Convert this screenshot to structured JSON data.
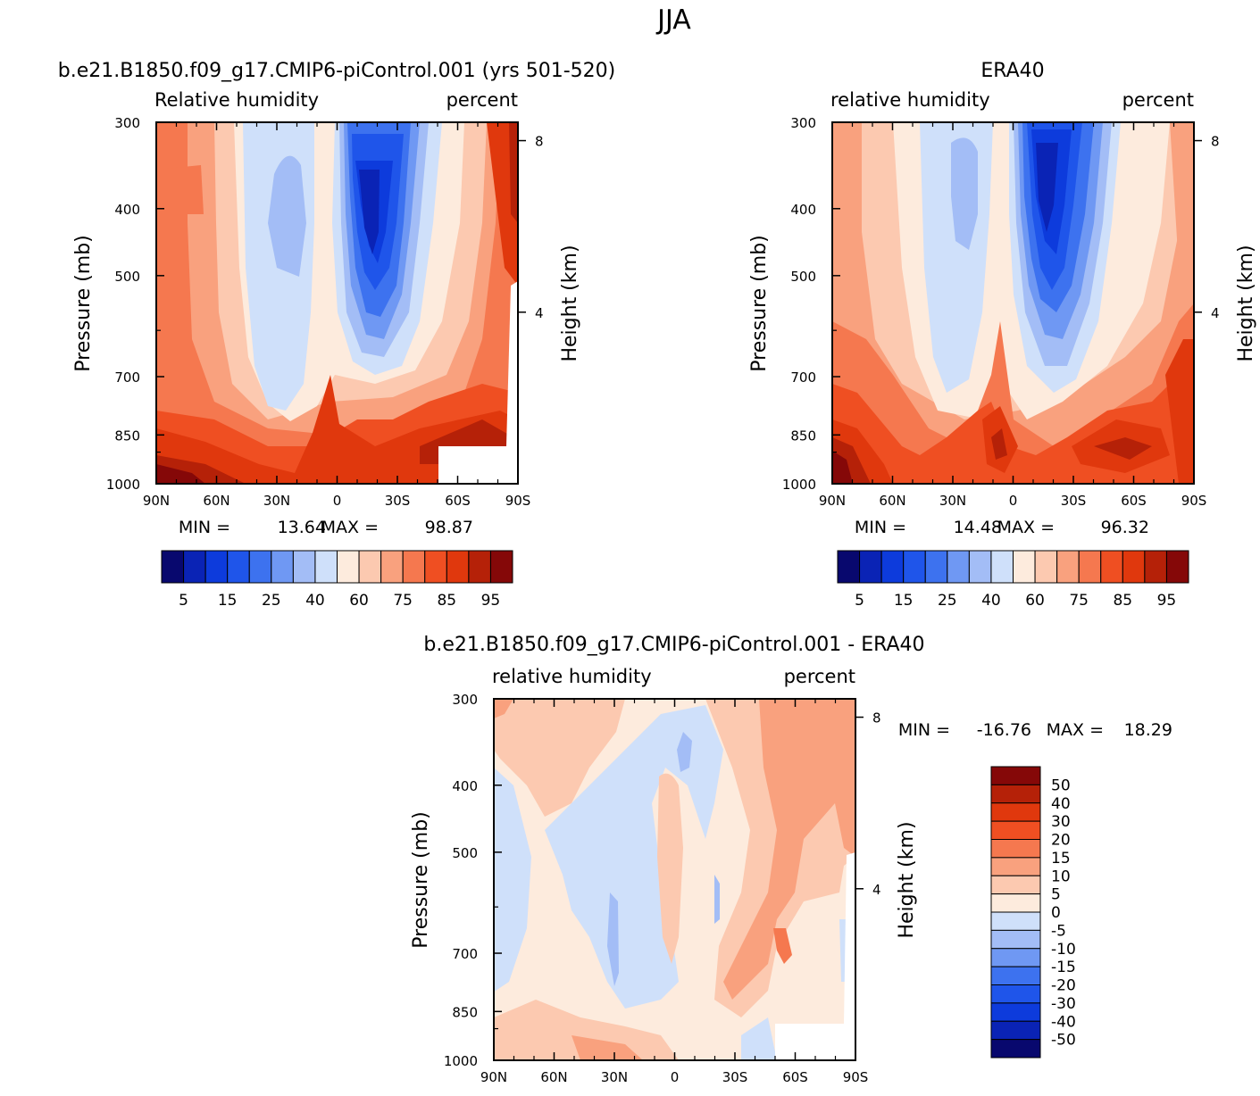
{
  "figure_title": "JJA",
  "colors": {
    "rh_fill": [
      "#08086e",
      "#0a23b5",
      "#0d3bdc",
      "#1f55ea",
      "#3d72ef",
      "#6f98f3",
      "#a3bdf6",
      "#cfe0fa",
      "#fdebdd",
      "#fcc9b0",
      "#f9a17e",
      "#f5784f",
      "#ef4f22",
      "#e0380d",
      "#b52108",
      "#850808"
    ],
    "diff_fill": [
      "#08086e",
      "#0a23b5",
      "#0d3bdc",
      "#1f55ea",
      "#3d72ef",
      "#6f98f3",
      "#a3bdf6",
      "#cfe0fa",
      "#fdebdd",
      "#fcc9b0",
      "#f9a17e",
      "#f5784f",
      "#ef4f22",
      "#e0380d",
      "#b52108",
      "#850808"
    ]
  },
  "chart_data": [
    {
      "type": "heatmap",
      "title": "b.e21.B1850.f09_g17.CMIP6-piControl.001 (yrs 501-520)",
      "left_subtitle": "Relative humidity",
      "right_subtitle": "percent",
      "ylabel": "Pressure (mb)",
      "ylabel_right": "Height (km)",
      "y_ticks": [
        "300",
        "400",
        "500",
        "700",
        "850",
        "1000"
      ],
      "y_tick_values": [
        300,
        400,
        500,
        700,
        850,
        1000
      ],
      "ylim": [
        1000,
        300
      ],
      "right_ticks": [
        "8",
        "4"
      ],
      "right_tick_values_km": [
        8,
        4
      ],
      "x_ticks": [
        "90N",
        "60N",
        "30N",
        "0",
        "30S",
        "60S",
        "90S"
      ],
      "x_tick_values": [
        90,
        60,
        30,
        0,
        -30,
        -60,
        -90
      ],
      "xlim": [
        90,
        -90
      ],
      "min_label": "MIN =",
      "min_value": "13.64",
      "max_label": "MAX =",
      "max_value": "98.87",
      "colorbar_labels": [
        "5",
        "15",
        "25",
        "40",
        "60",
        "75",
        "85",
        "95"
      ],
      "levels": [
        5,
        10,
        15,
        20,
        25,
        30,
        40,
        50,
        60,
        65,
        75,
        80,
        85,
        90,
        95
      ],
      "features": [
        {
          "lat": 28,
          "p": 520,
          "value": 35
        },
        {
          "lat": 10,
          "p": 650,
          "value": 62
        },
        {
          "lat": -13,
          "p": 480,
          "value": 14
        },
        {
          "lat": -55,
          "p": 800,
          "value": 80
        },
        {
          "lat": 84,
          "p": 990,
          "value": 97
        },
        {
          "lat": 85,
          "p": 400,
          "value": 82
        }
      ]
    },
    {
      "type": "heatmap",
      "title": "ERA40",
      "left_subtitle": "relative humidity",
      "right_subtitle": "percent",
      "ylabel": "Pressure (mb)",
      "ylabel_right": "Height (km)",
      "y_ticks": [
        "300",
        "400",
        "500",
        "700",
        "850",
        "1000"
      ],
      "y_tick_values": [
        300,
        400,
        500,
        700,
        850,
        1000
      ],
      "ylim": [
        1000,
        300
      ],
      "right_ticks": [
        "8",
        "4"
      ],
      "right_tick_values_km": [
        8,
        4
      ],
      "x_ticks": [
        "90N",
        "60N",
        "30N",
        "0",
        "30S",
        "60S",
        "90S"
      ],
      "x_tick_values": [
        90,
        60,
        30,
        0,
        -30,
        -60,
        -90
      ],
      "xlim": [
        90,
        -90
      ],
      "min_label": "MIN =",
      "min_value": "14.48",
      "max_label": "MAX =",
      "max_value": "96.32",
      "colorbar_labels": [
        "5",
        "15",
        "25",
        "40",
        "60",
        "75",
        "85",
        "95"
      ],
      "levels": [
        5,
        10,
        15,
        20,
        25,
        30,
        40,
        50,
        60,
        65,
        75,
        80,
        85,
        90,
        95
      ],
      "features": [
        {
          "lat": 25,
          "p": 450,
          "value": 40
        },
        {
          "lat": 7,
          "p": 650,
          "value": 63
        },
        {
          "lat": -17,
          "p": 480,
          "value": 15
        },
        {
          "lat": 85,
          "p": 950,
          "value": 94
        },
        {
          "lat": 10,
          "p": 930,
          "value": 90
        },
        {
          "lat": -55,
          "p": 920,
          "value": 90
        }
      ]
    },
    {
      "type": "heatmap",
      "title": "b.e21.B1850.f09_g17.CMIP6-piControl.001 - ERA40",
      "left_subtitle": "relative humidity",
      "right_subtitle": "percent",
      "ylabel": "Pressure (mb)",
      "ylabel_right": "Height (km)",
      "y_ticks": [
        "300",
        "400",
        "500",
        "700",
        "850",
        "1000"
      ],
      "y_tick_values": [
        300,
        400,
        500,
        700,
        850,
        1000
      ],
      "ylim": [
        1000,
        300
      ],
      "right_ticks": [
        "8",
        "4"
      ],
      "right_tick_values_km": [
        8,
        4
      ],
      "x_ticks": [
        "90N",
        "60N",
        "30N",
        "0",
        "30S",
        "60S",
        "90S"
      ],
      "x_tick_values": [
        90,
        60,
        30,
        0,
        -30,
        -60,
        -90
      ],
      "xlim": [
        90,
        -90
      ],
      "min_label": "MIN =",
      "min_value": "-16.76",
      "max_label": "MAX =",
      "max_value": "18.29",
      "colorbar_labels": [
        "50",
        "40",
        "30",
        "20",
        "15",
        "10",
        "5",
        "0",
        "-5",
        "-10",
        "-15",
        "-20",
        "-30",
        "-40",
        "-50"
      ],
      "levels": [
        -50,
        -40,
        -30,
        -20,
        -15,
        -10,
        -5,
        0,
        5,
        10,
        15,
        20,
        30,
        40,
        50
      ],
      "features": [
        {
          "lat": 5,
          "p": 640,
          "value": 8
        },
        {
          "lat": -55,
          "p": 760,
          "value": 12
        },
        {
          "lat": -43,
          "p": 750,
          "value": 16
        },
        {
          "lat": 30,
          "p": 750,
          "value": -7
        },
        {
          "lat": -5,
          "p": 430,
          "value": -6
        },
        {
          "lat": -80,
          "p": 380,
          "value": 10
        }
      ]
    }
  ]
}
